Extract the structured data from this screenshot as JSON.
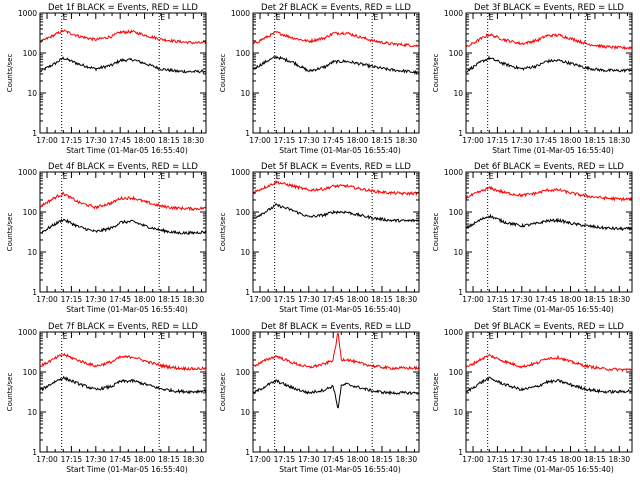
{
  "chart_data": [
    {
      "type": "line",
      "title": "Det 1f BLACK = Events, RED = LLD",
      "xlabel": "Start Time (01-Mar-05 16:55:40)",
      "ylabel": "Counts/sec",
      "x_ticks": [
        "17:00",
        "17:15",
        "17:30",
        "17:45",
        "18:00",
        "18:15",
        "18:30"
      ],
      "x_tick_minutes": [
        0,
        15,
        30,
        45,
        60,
        75,
        90
      ],
      "x_range_minutes": [
        -4.33,
        97.8
      ],
      "yscale": "log",
      "ylim": [
        1,
        1000
      ],
      "y_ticks": [
        "1",
        "10",
        "100",
        "1000"
      ],
      "vlines_minutes": [
        9,
        69
      ],
      "markers": [
        "E",
        "E"
      ],
      "series": [
        {
          "name": "Events",
          "color": "#000000",
          "x": [
            -4,
            5,
            10,
            20,
            30,
            40,
            45,
            53,
            60,
            70,
            80,
            90,
            97
          ],
          "values": [
            35,
            55,
            75,
            52,
            40,
            50,
            65,
            68,
            55,
            40,
            35,
            34,
            35
          ]
        },
        {
          "name": "LLD",
          "color": "#ff0000",
          "x": [
            -4,
            5,
            10,
            20,
            30,
            40,
            45,
            53,
            60,
            70,
            80,
            90,
            97
          ],
          "values": [
            190,
            290,
            360,
            260,
            215,
            260,
            330,
            340,
            280,
            220,
            195,
            180,
            178
          ]
        }
      ]
    },
    {
      "type": "line",
      "title": "Det 2f BLACK = Events, RED = LLD",
      "xlabel": "Start Time (01-Mar-05 16:55:40)",
      "ylabel": "Counts/sec",
      "x_ticks": [
        "17:00",
        "17:15",
        "17:30",
        "17:45",
        "18:00",
        "18:15",
        "18:30"
      ],
      "x_tick_minutes": [
        0,
        15,
        30,
        45,
        60,
        75,
        90
      ],
      "x_range_minutes": [
        -4.33,
        97.8
      ],
      "yscale": "log",
      "ylim": [
        1,
        1000
      ],
      "y_ticks": [
        "1",
        "10",
        "100",
        "1000"
      ],
      "vlines_minutes": [
        9,
        69
      ],
      "markers": [
        "E",
        "E"
      ],
      "series": [
        {
          "name": "Events",
          "color": "#000000",
          "x": [
            -4,
            5,
            10,
            20,
            30,
            40,
            45,
            53,
            60,
            70,
            80,
            90,
            97
          ],
          "values": [
            40,
            65,
            80,
            60,
            35,
            45,
            60,
            62,
            55,
            45,
            38,
            35,
            32
          ]
        },
        {
          "name": "LLD",
          "color": "#ff0000",
          "x": [
            -4,
            5,
            10,
            20,
            30,
            40,
            45,
            53,
            60,
            70,
            80,
            90,
            97
          ],
          "values": [
            170,
            260,
            330,
            240,
            195,
            240,
            310,
            320,
            260,
            200,
            170,
            160,
            150
          ]
        }
      ]
    },
    {
      "type": "line",
      "title": "Det 3f BLACK = Events, RED = LLD",
      "xlabel": "Start Time (01-Mar-05 16:55:40)",
      "ylabel": "Counts/sec",
      "x_ticks": [
        "17:00",
        "17:15",
        "17:30",
        "17:45",
        "18:00",
        "18:15",
        "18:30"
      ],
      "x_tick_minutes": [
        0,
        15,
        30,
        45,
        60,
        75,
        90
      ],
      "x_range_minutes": [
        -4.33,
        97.8
      ],
      "yscale": "log",
      "ylim": [
        1,
        1000
      ],
      "y_ticks": [
        "1",
        "10",
        "100",
        "1000"
      ],
      "vlines_minutes": [
        9,
        69
      ],
      "markers": [
        "E",
        "E"
      ],
      "series": [
        {
          "name": "Events",
          "color": "#000000",
          "x": [
            -4,
            5,
            10,
            20,
            30,
            40,
            45,
            53,
            60,
            70,
            80,
            90,
            97
          ],
          "values": [
            35,
            60,
            75,
            52,
            40,
            48,
            62,
            65,
            55,
            42,
            37,
            36,
            38
          ]
        },
        {
          "name": "LLD",
          "color": "#ff0000",
          "x": [
            -4,
            5,
            10,
            20,
            30,
            40,
            45,
            53,
            60,
            70,
            80,
            90,
            97
          ],
          "values": [
            140,
            230,
            290,
            210,
            170,
            210,
            270,
            280,
            230,
            170,
            145,
            135,
            135
          ]
        }
      ]
    },
    {
      "type": "line",
      "title": "Det 4f BLACK = Events, RED = LLD",
      "xlabel": "Start Time (01-Mar-05 16:55:40)",
      "ylabel": "Counts/sec",
      "x_ticks": [
        "17:00",
        "17:15",
        "17:30",
        "17:45",
        "18:00",
        "18:15",
        "18:30"
      ],
      "x_tick_minutes": [
        0,
        15,
        30,
        45,
        60,
        75,
        90
      ],
      "x_range_minutes": [
        -4.33,
        97.8
      ],
      "yscale": "log",
      "ylim": [
        1,
        1000
      ],
      "y_ticks": [
        "1",
        "10",
        "100",
        "1000"
      ],
      "vlines_minutes": [
        9,
        69
      ],
      "markers": [
        "E",
        "E"
      ],
      "series": [
        {
          "name": "Events",
          "color": "#000000",
          "x": [
            -4,
            5,
            10,
            20,
            30,
            40,
            45,
            53,
            60,
            70,
            80,
            90,
            97
          ],
          "values": [
            30,
            50,
            65,
            42,
            32,
            40,
            55,
            58,
            45,
            35,
            30,
            30,
            32
          ]
        },
        {
          "name": "LLD",
          "color": "#ff0000",
          "x": [
            -4,
            5,
            10,
            20,
            30,
            40,
            45,
            53,
            60,
            70,
            80,
            90,
            97
          ],
          "values": [
            140,
            230,
            290,
            170,
            130,
            170,
            220,
            225,
            180,
            140,
            125,
            120,
            125
          ]
        }
      ]
    },
    {
      "type": "line",
      "title": "Det 5f BLACK = Events, RED = LLD",
      "xlabel": "Start Time (01-Mar-05 16:55:40)",
      "ylabel": "Counts/sec",
      "x_ticks": [
        "17:00",
        "17:15",
        "17:30",
        "17:45",
        "18:00",
        "18:15",
        "18:30"
      ],
      "x_tick_minutes": [
        0,
        15,
        30,
        45,
        60,
        75,
        90
      ],
      "x_range_minutes": [
        -4.33,
        97.8
      ],
      "yscale": "log",
      "ylim": [
        1,
        1000
      ],
      "y_ticks": [
        "1",
        "10",
        "100",
        "1000"
      ],
      "vlines_minutes": [
        9,
        69
      ],
      "markers": [
        "E",
        "E"
      ],
      "series": [
        {
          "name": "Events",
          "color": "#000000",
          "x": [
            -4,
            5,
            10,
            20,
            30,
            40,
            45,
            53,
            60,
            70,
            80,
            90,
            97
          ],
          "values": [
            70,
            110,
            150,
            110,
            75,
            85,
            100,
            100,
            85,
            70,
            62,
            60,
            62
          ]
        },
        {
          "name": "LLD",
          "color": "#ff0000",
          "x": [
            -4,
            5,
            10,
            20,
            30,
            40,
            45,
            53,
            60,
            70,
            80,
            90,
            97
          ],
          "values": [
            310,
            450,
            560,
            450,
            350,
            380,
            440,
            450,
            390,
            330,
            300,
            290,
            295
          ]
        }
      ]
    },
    {
      "type": "line",
      "title": "Det 6f BLACK = Events, RED = LLD",
      "xlabel": "Start Time (01-Mar-05 16:55:40)",
      "ylabel": "Counts/sec",
      "x_ticks": [
        "17:00",
        "17:15",
        "17:30",
        "17:45",
        "18:00",
        "18:15",
        "18:30"
      ],
      "x_tick_minutes": [
        0,
        15,
        30,
        45,
        60,
        75,
        90
      ],
      "x_range_minutes": [
        -4.33,
        97.8
      ],
      "yscale": "log",
      "ylim": [
        1,
        1000
      ],
      "y_ticks": [
        "1",
        "10",
        "100",
        "1000"
      ],
      "vlines_minutes": [
        9,
        69
      ],
      "markers": [
        "E",
        "E"
      ],
      "series": [
        {
          "name": "Events",
          "color": "#000000",
          "x": [
            -4,
            5,
            10,
            20,
            30,
            40,
            45,
            53,
            60,
            70,
            80,
            90,
            97
          ],
          "values": [
            40,
            65,
            80,
            55,
            45,
            52,
            60,
            62,
            52,
            45,
            40,
            38,
            38
          ]
        },
        {
          "name": "LLD",
          "color": "#ff0000",
          "x": [
            -4,
            5,
            10,
            20,
            30,
            40,
            45,
            53,
            60,
            70,
            80,
            90,
            97
          ],
          "values": [
            230,
            330,
            400,
            300,
            260,
            300,
            350,
            355,
            300,
            250,
            225,
            210,
            210
          ]
        }
      ]
    },
    {
      "type": "line",
      "title": "Det 7f BLACK = Events, RED = LLD",
      "xlabel": "Start Time (01-Mar-05 16:55:40)",
      "ylabel": "Counts/sec",
      "x_ticks": [
        "17:00",
        "17:15",
        "17:30",
        "17:45",
        "18:00",
        "18:15",
        "18:30"
      ],
      "x_tick_minutes": [
        0,
        15,
        30,
        45,
        60,
        75,
        90
      ],
      "x_range_minutes": [
        -4.33,
        97.8
      ],
      "yscale": "log",
      "ylim": [
        1,
        1000
      ],
      "y_ticks": [
        "1",
        "10",
        "100",
        "1000"
      ],
      "vlines_minutes": [
        9,
        69
      ],
      "markers": [
        "E",
        "E"
      ],
      "series": [
        {
          "name": "Events",
          "color": "#000000",
          "x": [
            -4,
            5,
            10,
            20,
            30,
            40,
            45,
            53,
            60,
            70,
            80,
            90,
            97
          ],
          "values": [
            35,
            58,
            72,
            50,
            36,
            44,
            58,
            60,
            50,
            38,
            33,
            32,
            34
          ]
        },
        {
          "name": "LLD",
          "color": "#ff0000",
          "x": [
            -4,
            5,
            10,
            20,
            30,
            40,
            45,
            53,
            60,
            70,
            80,
            90,
            97
          ],
          "values": [
            140,
            220,
            275,
            190,
            140,
            180,
            235,
            240,
            190,
            145,
            125,
            120,
            122
          ]
        }
      ]
    },
    {
      "type": "line",
      "title": "Det 8f BLACK = Events, RED = LLD",
      "xlabel": "Start Time (01-Mar-05 16:55:40)",
      "ylabel": "Counts/sec",
      "x_ticks": [
        "17:00",
        "17:15",
        "17:30",
        "17:45",
        "18:00",
        "18:15",
        "18:30"
      ],
      "x_tick_minutes": [
        0,
        15,
        30,
        45,
        60,
        75,
        90
      ],
      "x_range_minutes": [
        -4.33,
        97.8
      ],
      "yscale": "log",
      "ylim": [
        1,
        1000
      ],
      "y_ticks": [
        "1",
        "10",
        "100",
        "1000"
      ],
      "vlines_minutes": [
        9,
        69
      ],
      "markers": [
        "E",
        "E"
      ],
      "series": [
        {
          "name": "Events",
          "color": "#000000",
          "x": [
            -4,
            5,
            10,
            20,
            30,
            40,
            45,
            48,
            50,
            53,
            60,
            70,
            80,
            90,
            97
          ],
          "values": [
            30,
            48,
            60,
            40,
            30,
            36,
            45,
            12,
            45,
            50,
            42,
            33,
            30,
            30,
            30
          ]
        },
        {
          "name": "LLD",
          "color": "#ff0000",
          "x": [
            -4,
            5,
            10,
            20,
            30,
            40,
            45,
            48,
            50,
            53,
            60,
            70,
            80,
            90,
            97
          ],
          "values": [
            140,
            210,
            250,
            170,
            130,
            160,
            200,
            1000,
            200,
            210,
            170,
            140,
            125,
            125,
            125
          ]
        }
      ]
    },
    {
      "type": "line",
      "title": "Det 9f BLACK = Events, RED = LLD",
      "xlabel": "Start Time (01-Mar-05 16:55:40)",
      "ylabel": "Counts/sec",
      "x_ticks": [
        "17:00",
        "17:15",
        "17:30",
        "17:45",
        "18:00",
        "18:15",
        "18:30"
      ],
      "x_tick_minutes": [
        0,
        15,
        30,
        45,
        60,
        75,
        90
      ],
      "x_range_minutes": [
        -4.33,
        97.8
      ],
      "yscale": "log",
      "ylim": [
        1,
        1000
      ],
      "y_ticks": [
        "1",
        "10",
        "100",
        "1000"
      ],
      "vlines_minutes": [
        9,
        69
      ],
      "markers": [
        "E",
        "E"
      ],
      "series": [
        {
          "name": "Events",
          "color": "#000000",
          "x": [
            -4,
            5,
            10,
            20,
            30,
            40,
            45,
            53,
            60,
            70,
            80,
            90,
            97
          ],
          "values": [
            32,
            55,
            70,
            48,
            36,
            44,
            56,
            60,
            48,
            37,
            32,
            32,
            34
          ]
        },
        {
          "name": "LLD",
          "color": "#ff0000",
          "x": [
            -4,
            5,
            10,
            20,
            30,
            40,
            45,
            53,
            60,
            70,
            80,
            90,
            97
          ],
          "values": [
            130,
            210,
            260,
            180,
            135,
            170,
            220,
            230,
            180,
            140,
            120,
            115,
            115
          ]
        }
      ]
    }
  ]
}
